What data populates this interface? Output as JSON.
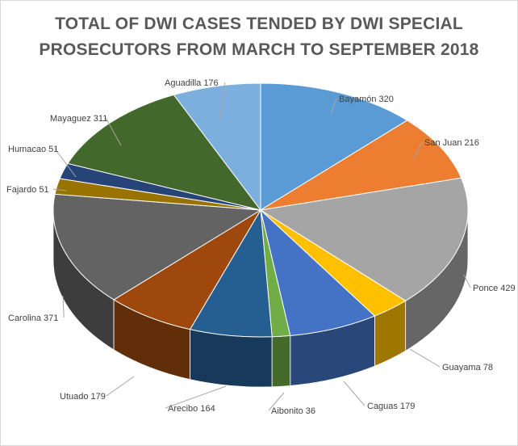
{
  "chart_data": {
    "type": "pie",
    "title_lines": [
      "TOTAL OF DWI CASES TENDED BY DWI SPECIAL",
      "PROSECUTORS FROM MARCH TO SEPTEMBER 2018"
    ],
    "slices": [
      {
        "label": "Bayamón 320",
        "name": "Bayamón",
        "value": 320,
        "color": "#5B9BD5"
      },
      {
        "label": "San Juan 216",
        "name": "San Juan",
        "value": 216,
        "color": "#ED7D31"
      },
      {
        "label": "Ponce 429",
        "name": "Ponce",
        "value": 429,
        "color": "#A5A5A5"
      },
      {
        "label": "Guayama 78",
        "name": "Guayama",
        "value": 78,
        "color": "#FFC000"
      },
      {
        "label": "Caguas 179",
        "name": "Caguas",
        "value": 179,
        "color": "#4472C4"
      },
      {
        "label": "Aibonito 36",
        "name": "Aibonito",
        "value": 36,
        "color": "#70AD47"
      },
      {
        "label": "Arecibo 164",
        "name": "Arecibo",
        "value": 164,
        "color": "#255E91"
      },
      {
        "label": "Utuado 179",
        "name": "Utuado",
        "value": 179,
        "color": "#9E480E"
      },
      {
        "label": "Carolina 371",
        "name": "Carolina",
        "value": 371,
        "color": "#636363"
      },
      {
        "label": "Fajardo 51",
        "name": "Fajardo",
        "value": 51,
        "color": "#997300"
      },
      {
        "label": "Humacao 51",
        "name": "Humacao",
        "value": 51,
        "color": "#264478"
      },
      {
        "label": "Mayaguez 311",
        "name": "Mayaguez",
        "value": 311,
        "color": "#43682B"
      },
      {
        "label": "Aguadilla 176",
        "name": "Aguadilla",
        "value": 176,
        "color": "#7CAFDD"
      }
    ]
  }
}
